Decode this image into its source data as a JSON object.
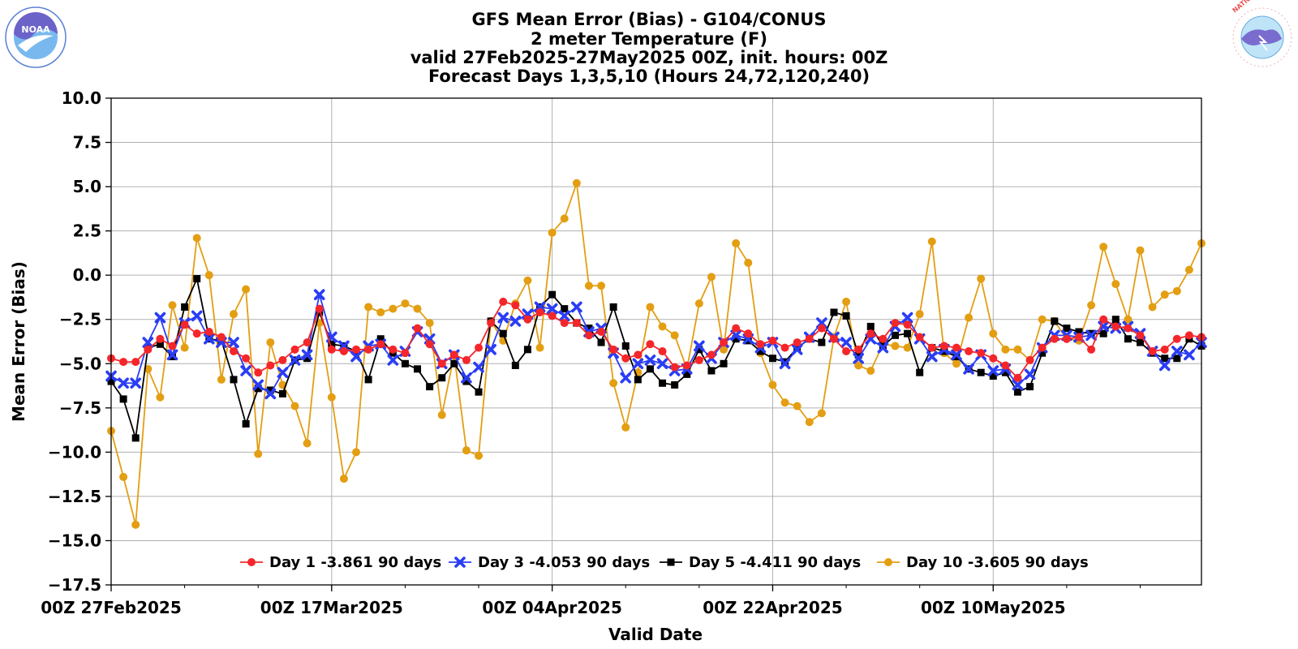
{
  "colors": {
    "day1": "#f4262a",
    "day3": "#2a3df5",
    "day5": "#000000",
    "day10": "#e39e12",
    "grid": "#b0b0b0",
    "noaa_blue": "#5a7fd6",
    "nws_red": "#e85050"
  },
  "logos": {
    "noaa": {
      "icon": "noaa-logo-icon",
      "text": "NOAA",
      "ring_text": "NATIONAL OCEANIC AND ATMOSPHERIC ADMINISTRATION · U.S. DEPARTMENT OF COMMERCE"
    },
    "nws": {
      "icon": "nws-logo-icon",
      "ring_text": "NATIONAL WEATHER SERVICE"
    }
  },
  "chart_data": {
    "type": "line",
    "title": [
      "GFS Mean Error (Bias) - G104/CONUS",
      "2 meter Temperature (F)",
      "valid 27Feb2025-27May2025 00Z, init. hours: 00Z",
      "Forecast Days 1,3,5,10 (Hours 24,72,120,240)"
    ],
    "xlabel": "Valid Date",
    "ylabel": "Mean Error (Bias)",
    "ylim": [
      -17.5,
      10.0
    ],
    "yticks": [
      "10.0",
      "7.5",
      "5.0",
      "2.5",
      "0.0",
      "−2.5",
      "−5.0",
      "−7.5",
      "−10.0",
      "−12.5",
      "−15.0",
      "−17.5"
    ],
    "xticks": [
      {
        "index": 0,
        "label": "00Z 27Feb2025"
      },
      {
        "index": 18,
        "label": "00Z 17Mar2025"
      },
      {
        "index": 36,
        "label": "00Z 04Apr2025"
      },
      {
        "index": 54,
        "label": "00Z 22Apr2025"
      },
      {
        "index": 72,
        "label": "00Z 10May2025"
      }
    ],
    "x_first": "27Feb2025",
    "x_last": "27May2025",
    "grid": true,
    "legend_position": "bottom-center",
    "series": [
      {
        "key": "day1",
        "name": "Day 1 -3.861 90 days",
        "marker": "circle",
        "values": [
          -4.7,
          -4.9,
          -4.9,
          -4.2,
          -3.6,
          -4.0,
          -2.8,
          -3.3,
          -3.2,
          -3.5,
          -4.3,
          -4.7,
          -5.5,
          -5.1,
          -4.8,
          -4.2,
          -3.8,
          -1.9,
          -4.2,
          -4.3,
          -4.2,
          -4.2,
          -3.9,
          -4.2,
          -4.4,
          -3.0,
          -3.9,
          -5.0,
          -4.5,
          -4.8,
          -4.1,
          -2.7,
          -1.5,
          -1.7,
          -2.5,
          -2.1,
          -2.3,
          -2.7,
          -2.7,
          -3.4,
          -3.2,
          -4.2,
          -4.7,
          -4.5,
          -3.9,
          -4.3,
          -5.2,
          -5.1,
          -4.8,
          -4.5,
          -3.8,
          -3.0,
          -3.3,
          -3.9,
          -3.7,
          -4.1,
          -3.8,
          -3.6,
          -3.0,
          -3.6,
          -4.3,
          -4.2,
          -3.3,
          -3.6,
          -2.7,
          -2.8,
          -3.5,
          -4.1,
          -4.0,
          -4.1,
          -4.3,
          -4.4,
          -4.7,
          -5.1,
          -5.8,
          -4.8,
          -4.1,
          -3.6,
          -3.6,
          -3.5,
          -4.2,
          -2.5,
          -2.9,
          -3.0,
          -3.4,
          -4.3,
          -4.2,
          -3.6,
          -3.4,
          -3.5
        ]
      },
      {
        "key": "day3",
        "name": "Day 3 -4.053 90 days",
        "marker": "x",
        "values": [
          -5.7,
          -6.1,
          -6.1,
          -3.8,
          -2.4,
          -4.5,
          -2.7,
          -2.3,
          -3.6,
          -3.8,
          -3.8,
          -5.4,
          -6.2,
          -6.7,
          -5.5,
          -4.8,
          -4.5,
          -1.1,
          -3.5,
          -4.0,
          -4.6,
          -4.0,
          -3.9,
          -4.8,
          -4.3,
          -3.2,
          -3.6,
          -5.0,
          -4.5,
          -5.8,
          -5.2,
          -4.2,
          -2.4,
          -2.6,
          -2.2,
          -1.8,
          -1.9,
          -2.3,
          -1.8,
          -3.2,
          -3.0,
          -4.4,
          -5.8,
          -5.0,
          -4.8,
          -5.0,
          -5.4,
          -5.3,
          -4.0,
          -4.7,
          -3.8,
          -3.4,
          -3.6,
          -4.1,
          -3.8,
          -5.0,
          -4.2,
          -3.5,
          -2.7,
          -3.5,
          -3.8,
          -4.7,
          -3.6,
          -4.1,
          -2.9,
          -2.4,
          -3.6,
          -4.6,
          -4.2,
          -4.5,
          -5.3,
          -4.5,
          -5.4,
          -5.3,
          -6.2,
          -5.6,
          -4.1,
          -3.4,
          -3.4,
          -3.5,
          -3.4,
          -2.9,
          -3.0,
          -2.9,
          -3.3,
          -4.3,
          -5.1,
          -4.3,
          -4.5,
          -3.8
        ]
      },
      {
        "key": "day5",
        "name": "Day 5 -4.411 90 days",
        "marker": "square",
        "values": [
          -6.0,
          -7.0,
          -9.2,
          -4.1,
          -3.9,
          -4.6,
          -1.8,
          -0.2,
          -3.6,
          -3.7,
          -5.9,
          -8.4,
          -6.4,
          -6.5,
          -6.7,
          -4.8,
          -4.7,
          -2.1,
          -3.9,
          -4.0,
          -4.3,
          -5.9,
          -3.6,
          -4.4,
          -5.0,
          -5.3,
          -6.3,
          -5.8,
          -5.0,
          -6.0,
          -6.6,
          -2.6,
          -3.3,
          -5.1,
          -4.2,
          -1.8,
          -1.1,
          -1.9,
          -2.7,
          -3.0,
          -3.8,
          -1.8,
          -4.0,
          -5.9,
          -5.3,
          -6.1,
          -6.2,
          -5.6,
          -4.2,
          -5.4,
          -5.0,
          -3.6,
          -3.7,
          -4.3,
          -4.7,
          -4.9,
          -4.1,
          -3.6,
          -3.8,
          -2.1,
          -2.3,
          -4.5,
          -2.9,
          -4.0,
          -3.4,
          -3.3,
          -5.5,
          -4.1,
          -4.3,
          -4.6,
          -5.3,
          -5.5,
          -5.7,
          -5.5,
          -6.6,
          -6.3,
          -4.4,
          -2.6,
          -3.0,
          -3.2,
          -3.3,
          -3.3,
          -2.5,
          -3.6,
          -3.8,
          -4.4,
          -4.7,
          -4.7,
          -3.6,
          -4.0
        ]
      },
      {
        "key": "day10",
        "name": "Day 10 -3.605 90 days",
        "marker": "circle",
        "values": [
          -8.8,
          -11.4,
          -14.1,
          -5.3,
          -6.9,
          -1.7,
          -4.1,
          2.1,
          0.0,
          -5.9,
          -2.2,
          -0.8,
          -10.1,
          -3.8,
          -6.2,
          -7.4,
          -9.5,
          -2.7,
          -6.9,
          -11.5,
          -10.0,
          -1.8,
          -2.1,
          -1.9,
          -1.6,
          -1.9,
          -2.7,
          -7.9,
          -4.5,
          -9.9,
          -10.2,
          -2.6,
          -3.7,
          -1.6,
          -0.3,
          -4.1,
          2.4,
          3.2,
          5.2,
          -0.6,
          -0.6,
          -6.1,
          -8.6,
          -5.5,
          -1.8,
          -2.9,
          -3.4,
          -5.3,
          -1.6,
          -0.1,
          -4.2,
          1.8,
          0.7,
          -4.4,
          -6.2,
          -7.2,
          -7.4,
          -8.3,
          -7.8,
          -3.5,
          -1.5,
          -5.1,
          -5.4,
          -3.9,
          -4.0,
          -4.1,
          -2.2,
          1.9,
          -4.4,
          -5.0,
          -2.4,
          -0.2,
          -3.3,
          -4.2,
          -4.2,
          -4.8,
          -2.5,
          -2.6,
          -3.6,
          -3.7,
          -1.7,
          1.6,
          -0.5,
          -2.5,
          1.4,
          -1.8,
          -1.1,
          -0.9,
          0.3,
          1.8
        ]
      }
    ]
  }
}
